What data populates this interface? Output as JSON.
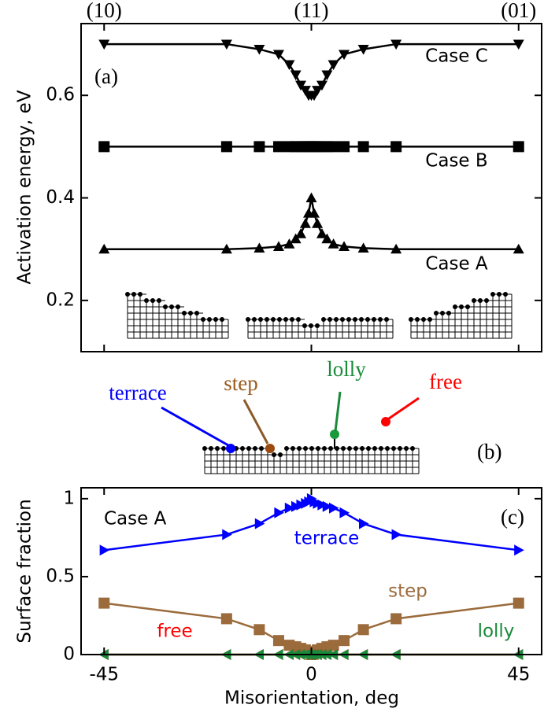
{
  "chart_data": [
    {
      "type": "line",
      "ylabel": "Activation energy, eV",
      "panel_label": "(a)",
      "x": [
        -45,
        -18.4,
        -11.3,
        -7.1,
        -4.8,
        -3.4,
        -2.3,
        -1.3,
        -0.6,
        0,
        0.6,
        1.3,
        2.3,
        3.4,
        4.8,
        7.1,
        11.3,
        18.4,
        45
      ],
      "xlim": [
        -50,
        50
      ],
      "xticks": [
        {
          "value": -45,
          "label": "(10)"
        },
        {
          "value": 0,
          "label": "(11)"
        },
        {
          "value": 45,
          "label": "(01)"
        }
      ],
      "ylim": [
        0.1,
        0.74
      ],
      "yticks": [
        0.2,
        0.4,
        0.6
      ],
      "series": [
        {
          "name": "Case C",
          "color": "#000000",
          "marker": "triangle-down",
          "values": [
            0.7,
            0.7,
            0.69,
            0.68,
            0.66,
            0.64,
            0.62,
            0.61,
            0.6,
            0.6,
            0.6,
            0.61,
            0.62,
            0.64,
            0.66,
            0.68,
            0.69,
            0.7,
            0.7
          ]
        },
        {
          "name": "Case B",
          "color": "#000000",
          "marker": "square",
          "values": [
            0.5,
            0.5,
            0.5,
            0.5,
            0.5,
            0.5,
            0.5,
            0.5,
            0.5,
            0.5,
            0.5,
            0.5,
            0.5,
            0.5,
            0.5,
            0.5,
            0.5,
            0.5,
            0.5
          ]
        },
        {
          "name": "Case A",
          "color": "#000000",
          "marker": "triangle-up",
          "values": [
            0.3,
            0.3,
            0.302,
            0.305,
            0.31,
            0.32,
            0.33,
            0.35,
            0.37,
            0.4,
            0.37,
            0.35,
            0.33,
            0.32,
            0.31,
            0.305,
            0.302,
            0.3,
            0.3
          ]
        }
      ]
    },
    {
      "type": "line",
      "ylabel": "Surface fraction",
      "xlabel": "Misorientation, deg",
      "panel_label": "(c)",
      "case_label": "Case A",
      "x": [
        -45,
        -18.4,
        -11.3,
        -7.1,
        -4.8,
        -3.4,
        -2.3,
        -1.3,
        -0.6,
        0,
        0.6,
        1.3,
        2.3,
        3.4,
        4.8,
        7.1,
        11.3,
        18.4,
        45
      ],
      "xlim": [
        -50,
        50
      ],
      "xticks": [
        -45,
        0,
        45
      ],
      "ylim": [
        0,
        1.07
      ],
      "yticks": [
        0,
        0.5,
        1
      ],
      "series": [
        {
          "name": "terrace",
          "color": "#0000ff",
          "marker": "triangle-right",
          "values": [
            0.67,
            0.77,
            0.84,
            0.91,
            0.94,
            0.95,
            0.96,
            0.97,
            0.98,
            1.0,
            0.98,
            0.97,
            0.96,
            0.95,
            0.94,
            0.91,
            0.84,
            0.77,
            0.67
          ]
        },
        {
          "name": "step",
          "color": "#9b6b3c",
          "marker": "square",
          "values": [
            0.33,
            0.23,
            0.16,
            0.09,
            0.06,
            0.05,
            0.04,
            0.03,
            0.02,
            0,
            0.02,
            0.03,
            0.04,
            0.05,
            0.06,
            0.09,
            0.16,
            0.23,
            0.33
          ]
        },
        {
          "name": "free",
          "color": "#ff0000",
          "marker": "triangle-left",
          "values": [
            0,
            0,
            0,
            0,
            0,
            0,
            0,
            0,
            0,
            0,
            0,
            0,
            0,
            0,
            0,
            0,
            0,
            0,
            0
          ]
        },
        {
          "name": "lolly",
          "color": "#1a8a3a",
          "marker": "triangle-left",
          "values": [
            0,
            0,
            0,
            0,
            0,
            0,
            0,
            0,
            0,
            0,
            0,
            0,
            0,
            0,
            0,
            0,
            0,
            0,
            0
          ]
        }
      ]
    }
  ],
  "diagram": {
    "panel_label": "(b)",
    "sites": [
      "terrace",
      "step",
      "lolly",
      "free"
    ]
  }
}
